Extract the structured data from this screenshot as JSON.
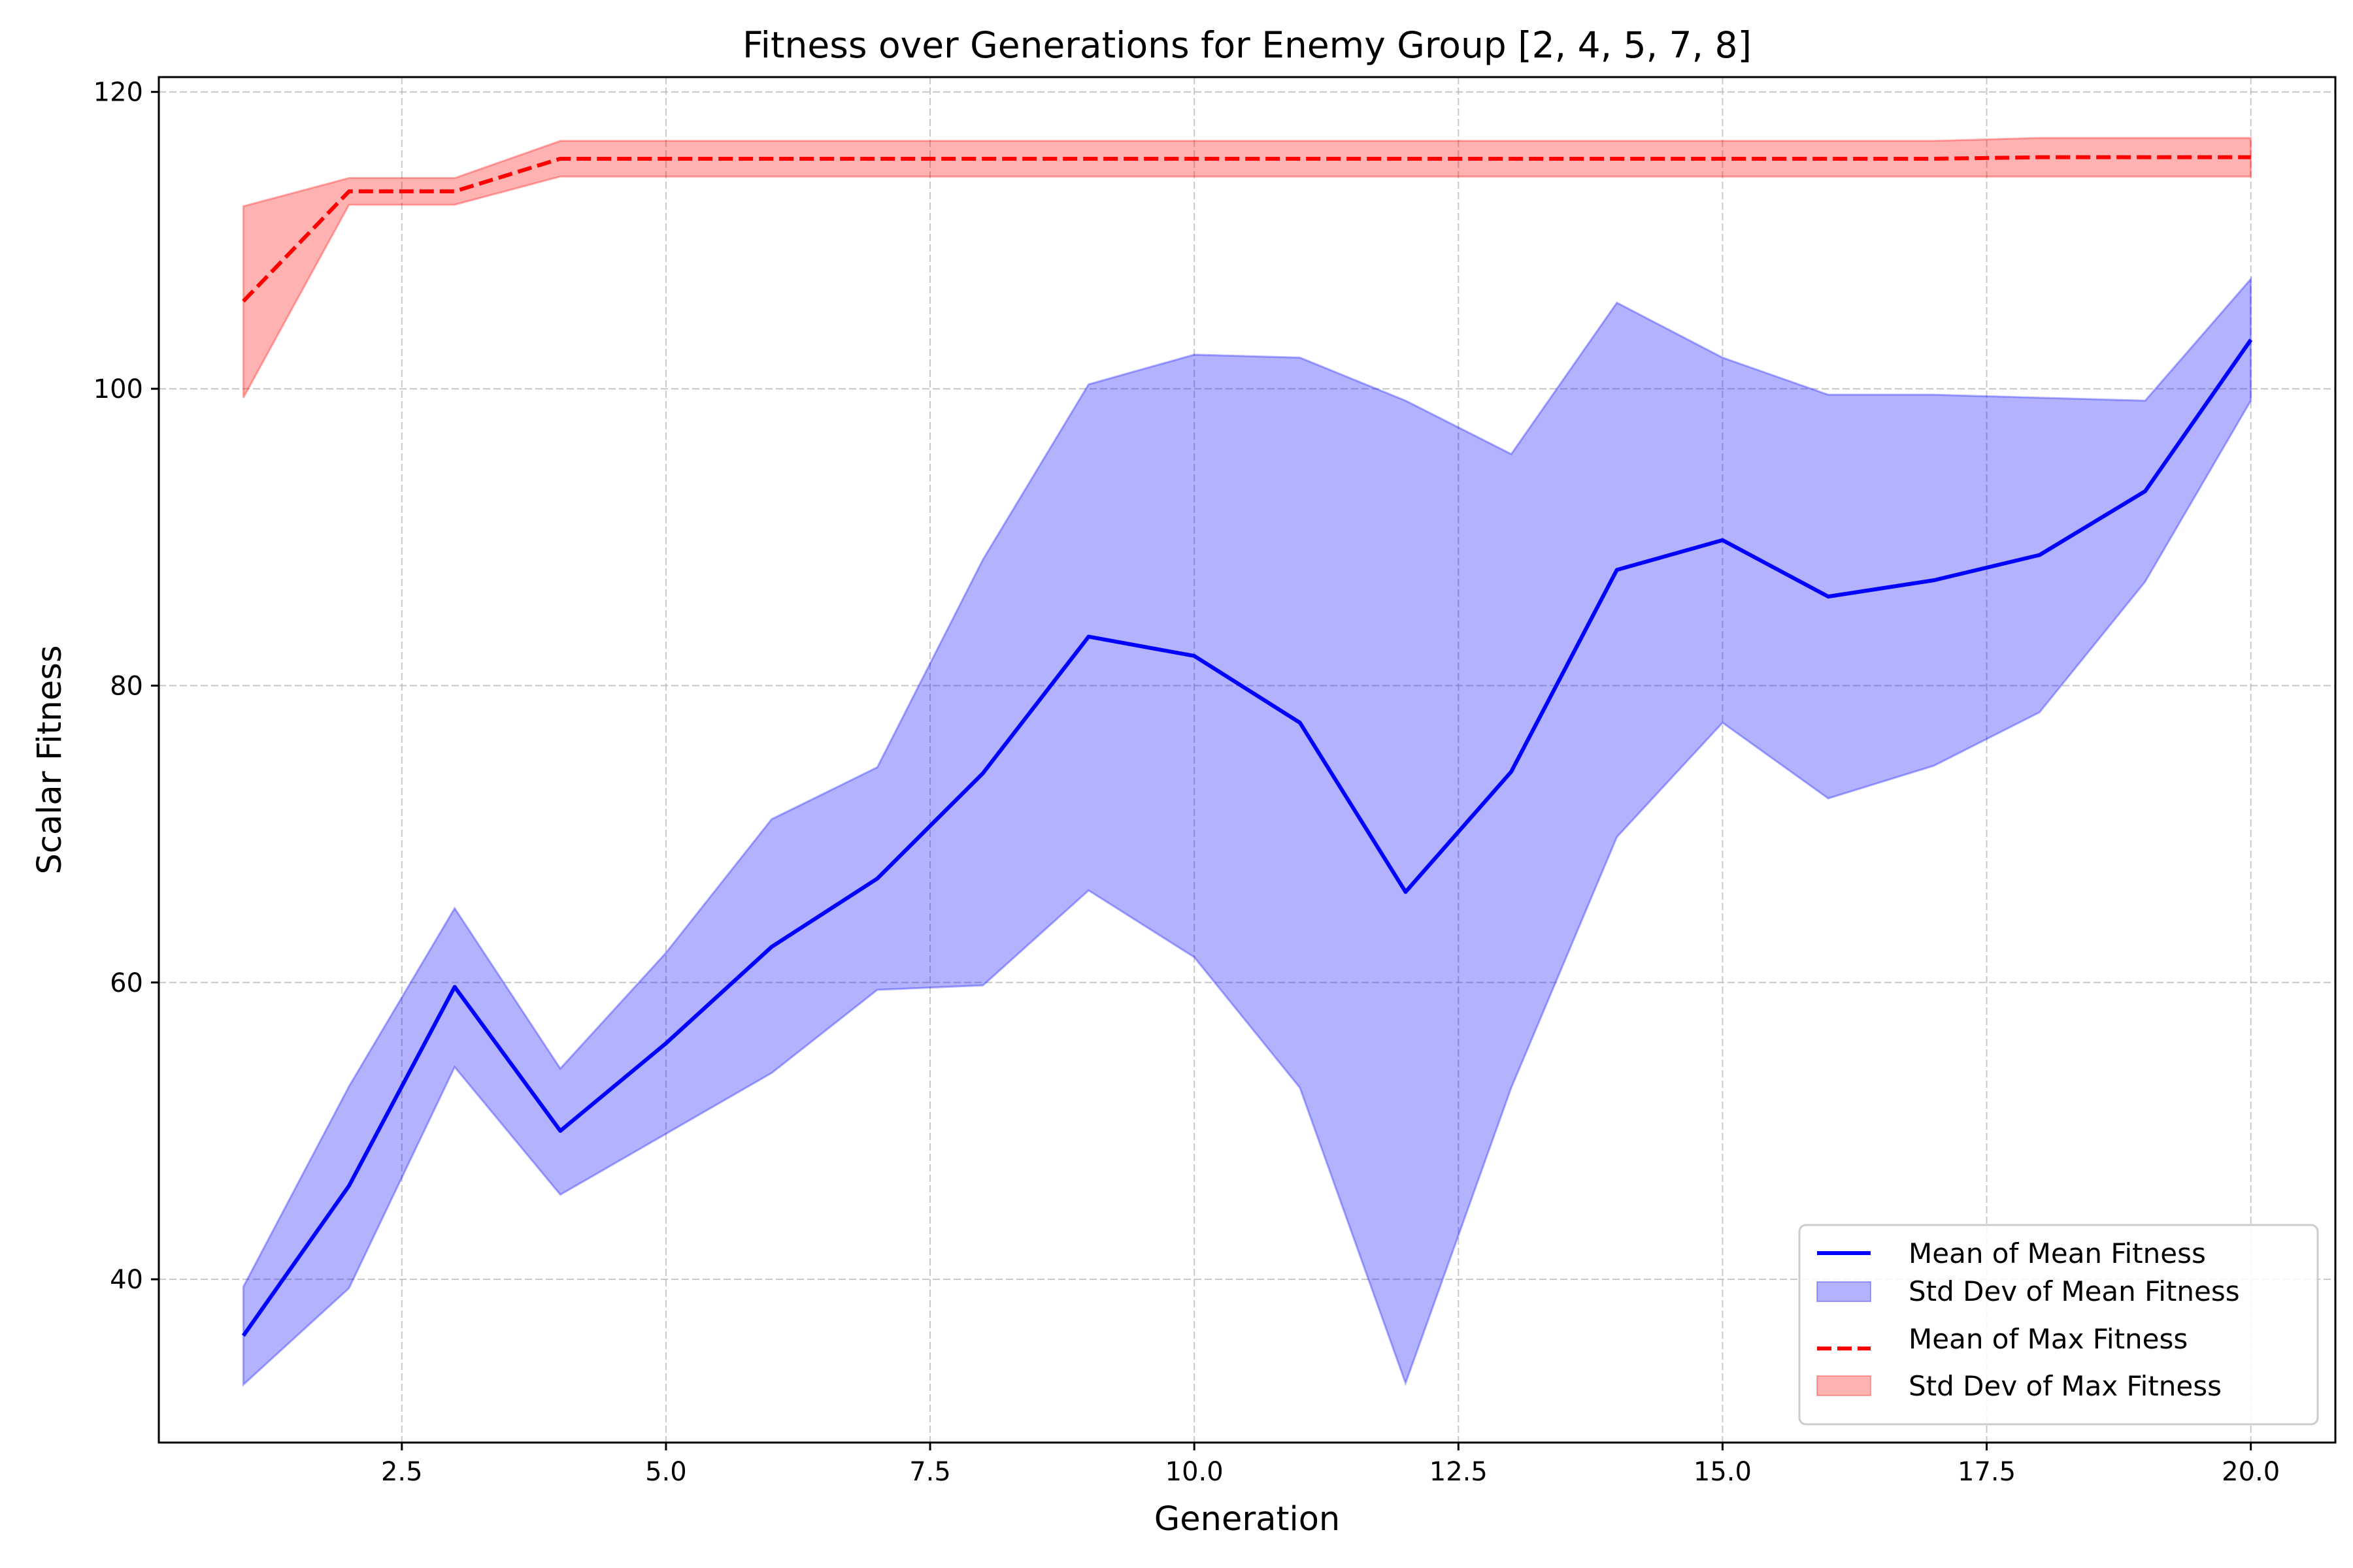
{
  "chart_data": {
    "type": "line",
    "title": "Fitness over Generations for Enemy Group [2, 4, 5, 7, 8]",
    "xlabel": "Generation",
    "ylabel": "Scalar Fitness",
    "xlim": [
      0.2,
      20.8
    ],
    "ylim": [
      29,
      121
    ],
    "xticks": [
      2.5,
      5.0,
      7.5,
      10.0,
      12.5,
      15.0,
      17.5,
      20.0
    ],
    "xtick_labels": [
      "2.5",
      "5.0",
      "7.5",
      "10.0",
      "12.5",
      "15.0",
      "17.5",
      "20.0"
    ],
    "yticks": [
      40,
      60,
      80,
      100,
      120
    ],
    "ytick_labels": [
      "40",
      "60",
      "80",
      "100",
      "120"
    ],
    "grid": true,
    "legend_position": "lower-right",
    "x": [
      1,
      2,
      3,
      4,
      5,
      6,
      7,
      8,
      9,
      10,
      11,
      12,
      13,
      14,
      15,
      16,
      17,
      18,
      19,
      20
    ],
    "series": [
      {
        "name": "Mean of Mean Fitness",
        "kind": "line",
        "style": "solid",
        "color": "#0000ff",
        "values": [
          36.2,
          46.3,
          59.7,
          50.0,
          55.9,
          62.4,
          67.0,
          74.1,
          83.3,
          82.0,
          77.5,
          66.1,
          74.2,
          87.8,
          89.8,
          86.0,
          87.1,
          88.8,
          93.1,
          103.3
        ]
      },
      {
        "name": "Std Dev of Mean Fitness",
        "kind": "band",
        "color": "#0000ff",
        "upper": [
          39.5,
          53.0,
          65.0,
          54.2,
          62.0,
          71.0,
          74.5,
          88.5,
          100.3,
          102.3,
          102.1,
          99.2,
          95.6,
          105.8,
          102.1,
          99.6,
          99.6,
          99.4,
          99.2,
          107.4
        ],
        "lower": [
          32.9,
          39.4,
          54.3,
          45.7,
          49.8,
          53.9,
          59.5,
          59.8,
          66.2,
          61.7,
          52.9,
          33.0,
          52.9,
          69.8,
          77.5,
          72.4,
          74.6,
          78.2,
          87.0,
          99.2
        ]
      },
      {
        "name": "Mean of Max Fitness",
        "kind": "line",
        "style": "dashed",
        "color": "#ff0000",
        "values": [
          105.9,
          113.3,
          113.3,
          115.5,
          115.5,
          115.5,
          115.5,
          115.5,
          115.5,
          115.5,
          115.5,
          115.5,
          115.5,
          115.5,
          115.5,
          115.5,
          115.5,
          115.6,
          115.6,
          115.6
        ]
      },
      {
        "name": "Std Dev of Max Fitness",
        "kind": "band",
        "color": "#ff0000",
        "upper": [
          112.3,
          114.2,
          114.2,
          116.7,
          116.7,
          116.7,
          116.7,
          116.7,
          116.7,
          116.7,
          116.7,
          116.7,
          116.7,
          116.7,
          116.7,
          116.7,
          116.7,
          116.9,
          116.9,
          116.9
        ],
        "lower": [
          99.4,
          112.4,
          112.4,
          114.3,
          114.3,
          114.3,
          114.3,
          114.3,
          114.3,
          114.3,
          114.3,
          114.3,
          114.3,
          114.3,
          114.3,
          114.3,
          114.3,
          114.3,
          114.3,
          114.3
        ]
      }
    ]
  }
}
